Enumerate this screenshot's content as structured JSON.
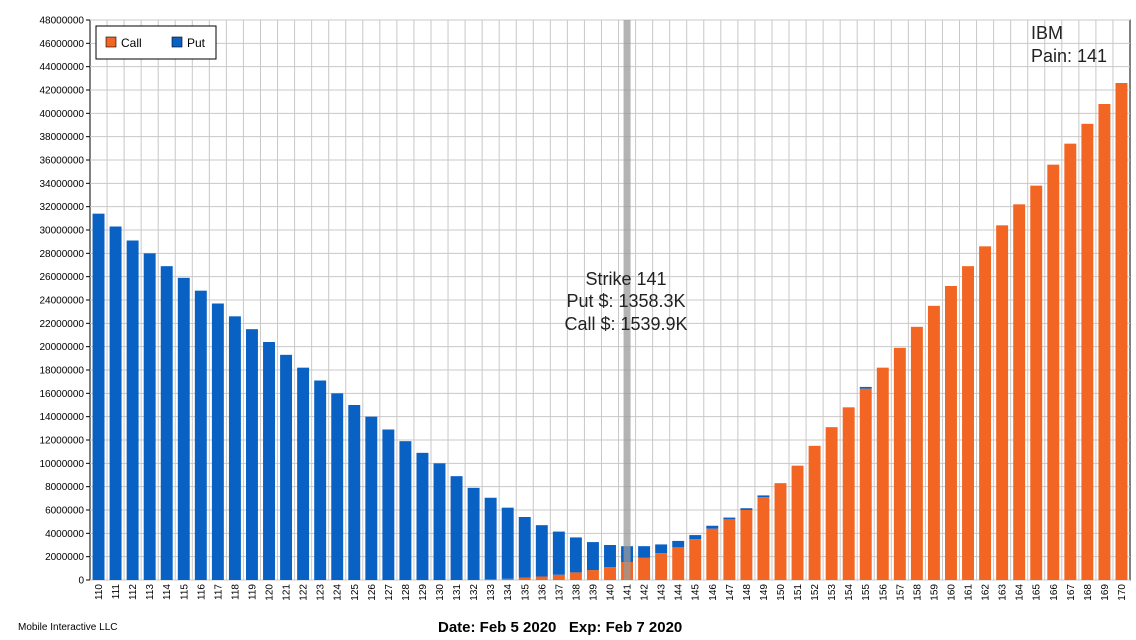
{
  "chart_data": {
    "type": "bar",
    "stacked": true,
    "categories": [
      "110",
      "111",
      "112",
      "113",
      "114",
      "115",
      "116",
      "117",
      "118",
      "119",
      "120",
      "121",
      "122",
      "123",
      "124",
      "125",
      "126",
      "127",
      "128",
      "129",
      "130",
      "131",
      "132",
      "133",
      "134",
      "135",
      "136",
      "137",
      "138",
      "139",
      "140",
      "141",
      "142",
      "143",
      "144",
      "145",
      "146",
      "147",
      "148",
      "149",
      "150",
      "151",
      "152",
      "153",
      "154",
      "155",
      "156",
      "157",
      "158",
      "159",
      "160",
      "161",
      "162",
      "163",
      "164",
      "165",
      "166",
      "167",
      "168",
      "169",
      "170"
    ],
    "series": [
      {
        "name": "Call",
        "color": "#f26522",
        "values": [
          0,
          0,
          0,
          0,
          0,
          0,
          0,
          0,
          0,
          0,
          0,
          0,
          0,
          0,
          0,
          0,
          0,
          0,
          0,
          0,
          0,
          0,
          0,
          50000,
          100000,
          200000,
          300000,
          450000,
          650000,
          850000,
          1100000,
          1539900,
          1900000,
          2300000,
          2800000,
          3500000,
          4400000,
          5200000,
          6000000,
          7100000,
          8300000,
          9800000,
          11500000,
          13100000,
          14800000,
          16400000,
          18200000,
          19900000,
          21700000,
          23500000,
          25200000,
          26900000,
          28600000,
          30400000,
          32200000,
          33800000,
          35600000,
          37400000,
          39100000,
          40800000,
          42600000
        ]
      },
      {
        "name": "Put",
        "color": "#0a61c4",
        "values": [
          31400000,
          30300000,
          29100000,
          28000000,
          26900000,
          25900000,
          24800000,
          23700000,
          22600000,
          21500000,
          20400000,
          19300000,
          18200000,
          17100000,
          16000000,
          15000000,
          14000000,
          12900000,
          11900000,
          10900000,
          10000000,
          8900000,
          7900000,
          7000000,
          6100000,
          5200000,
          4400000,
          3700000,
          3000000,
          2400000,
          1900000,
          1358300,
          1000000,
          750000,
          550000,
          350000,
          250000,
          150000,
          150000,
          150000,
          0,
          0,
          0,
          0,
          0,
          150000,
          0,
          0,
          0,
          0,
          0,
          0,
          0,
          0,
          0,
          0,
          0,
          0,
          0,
          0,
          0
        ]
      }
    ],
    "ylim": [
      0,
      48000000
    ],
    "yticks": [
      "0",
      "2000000",
      "4000000",
      "6000000",
      "8000000",
      "10000000",
      "12000000",
      "14000000",
      "16000000",
      "18000000",
      "20000000",
      "22000000",
      "24000000",
      "26000000",
      "28000000",
      "30000000",
      "32000000",
      "34000000",
      "36000000",
      "38000000",
      "40000000",
      "42000000",
      "44000000",
      "46000000",
      "48000000"
    ],
    "grid": true,
    "legend_position": "top-left",
    "highlight_category": "141",
    "annotation": {
      "line1": "Strike 141",
      "line2": "Put $: 1358.3K",
      "line3": "Call $: 1539.9K"
    },
    "corner": {
      "ticker": "IBM",
      "pain": "Pain: 141"
    }
  },
  "footer": {
    "company": "Mobile Interactive LLC",
    "dates": "Date: Feb 5 2020   Exp: Feb 7 2020"
  }
}
